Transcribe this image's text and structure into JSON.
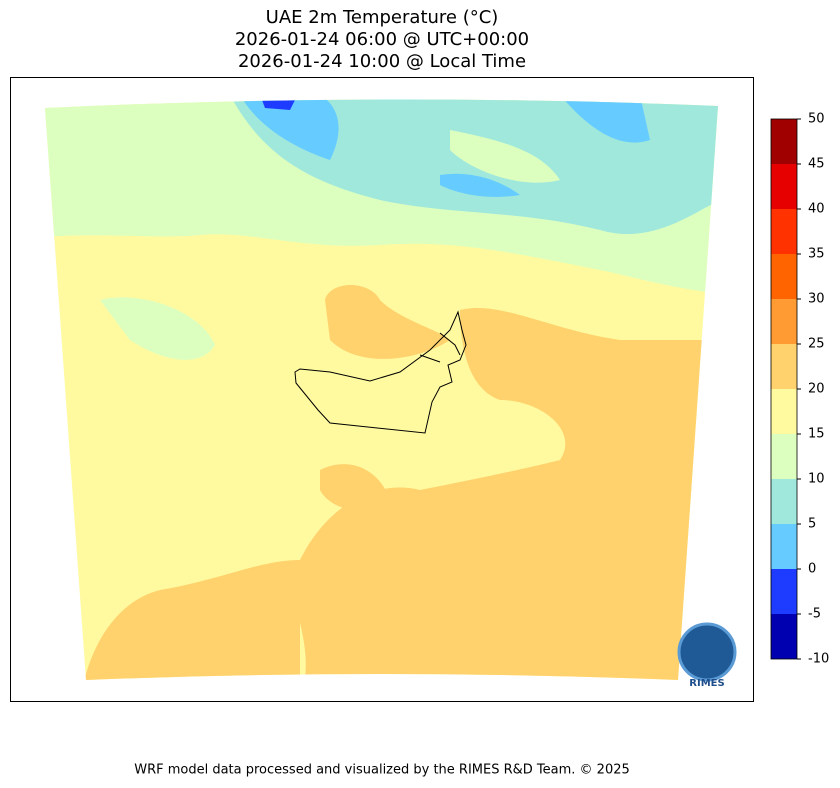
{
  "title": [
    "UAE 2m Temperature (°C)",
    "2026-01-24 06:00 @ UTC+00:00",
    "2026-01-24 10:00 @ Local Time"
  ],
  "colorbar": {
    "ticks": [
      -10,
      -5,
      0,
      5,
      10,
      15,
      20,
      25,
      30,
      35,
      40,
      45,
      50
    ],
    "colors": [
      "#0000b0",
      "#1e3cff",
      "#66ccff",
      "#a0e8dc",
      "#dcffc0",
      "#fffaa0",
      "#ffd26e",
      "#ff9b32",
      "#ff6400",
      "#ff3200",
      "#e60000",
      "#a00000"
    ]
  },
  "logo": "RIMES",
  "footer": "WRF model data processed and visualized by the RIMES R&D Team. © 2025"
}
